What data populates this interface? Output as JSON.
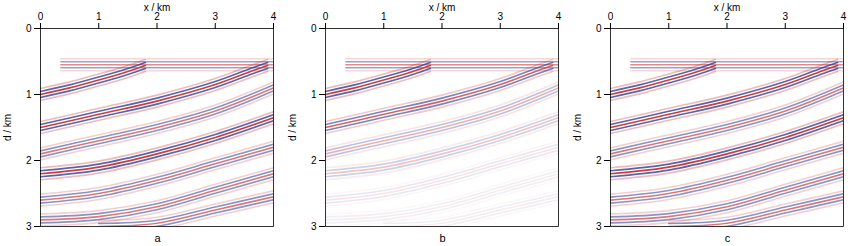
{
  "chart_data": {
    "type": "seismic_image",
    "xlabel": "x / km",
    "ylabel": "d / km",
    "xlim": [
      0,
      4
    ],
    "ylim": [
      0,
      3
    ],
    "xticks": [
      0,
      1,
      2,
      3,
      4
    ],
    "yticks": [
      0,
      1,
      2,
      3
    ],
    "reflectors": [
      {
        "x": [
          0.35,
          1.0,
          2.0,
          3.0,
          4.0
        ],
        "d": [
          0.55,
          0.55,
          0.55,
          0.55,
          0.55
        ]
      },
      {
        "x": [
          0,
          0.5,
          1.0,
          1.5,
          1.8
        ],
        "d": [
          1.0,
          0.9,
          0.78,
          0.65,
          0.56
        ]
      },
      {
        "x": [
          0,
          1.0,
          2.0,
          3.0,
          3.7,
          3.9
        ],
        "d": [
          1.5,
          1.3,
          1.1,
          0.85,
          0.62,
          0.56
        ]
      },
      {
        "x": [
          0,
          1.0,
          2.0,
          3.0,
          4.0
        ],
        "d": [
          1.9,
          1.7,
          1.5,
          1.25,
          0.9
        ]
      },
      {
        "x": [
          0,
          1.0,
          2.0,
          3.0,
          4.0
        ],
        "d": [
          2.2,
          2.1,
          1.9,
          1.65,
          1.35
        ]
      },
      {
        "x": [
          0,
          1.0,
          2.0,
          3.0,
          4.0
        ],
        "d": [
          2.6,
          2.5,
          2.3,
          2.05,
          1.8
        ]
      },
      {
        "x": [
          0,
          1.0,
          2.0,
          3.0,
          4.0
        ],
        "d": [
          2.9,
          2.85,
          2.7,
          2.45,
          2.2
        ]
      },
      {
        "x": [
          1.0,
          2.0,
          3.0,
          4.0
        ],
        "d": [
          3.0,
          2.95,
          2.75,
          2.55
        ]
      }
    ],
    "panels": [
      {
        "label": "a",
        "amplitudes": [
          0.6,
          1.0,
          1.0,
          0.7,
          1.0,
          0.7,
          0.7,
          0.7
        ]
      },
      {
        "label": "b",
        "amplitudes": [
          0.6,
          1.0,
          0.8,
          0.4,
          0.3,
          0.15,
          0.1,
          0.1
        ]
      },
      {
        "label": "c",
        "amplitudes": [
          0.6,
          1.0,
          1.0,
          0.7,
          1.0,
          0.7,
          0.7,
          0.7
        ]
      }
    ]
  }
}
